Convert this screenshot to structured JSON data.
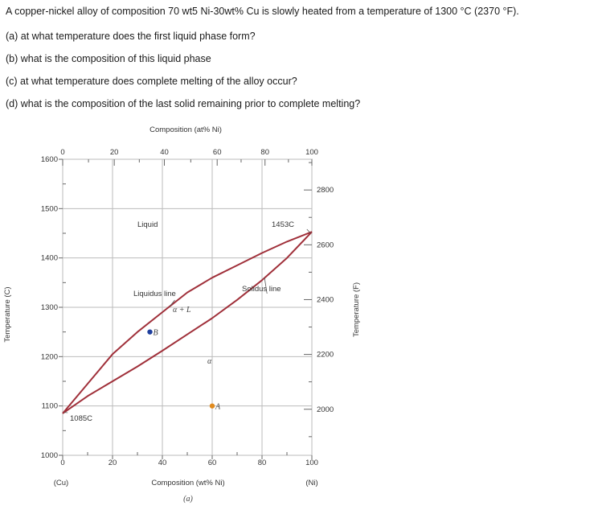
{
  "questions": [
    "A copper-nickel alloy of composition 70 wt5 Ni-30wt% Cu is slowly heated from a temperature of 1300 °C (2370 °F).",
    "(a) at what temperature does the first liquid phase form?",
    "(b) what is the composition of this liquid phase",
    "(c) at what temperature does complete melting of the alloy occur?",
    "(d) what is the composition of the last solid remaining prior to complete melting?"
  ],
  "chart_data": {
    "type": "line",
    "top_axis_label": "Composition (at% Ni)",
    "top_ticks": [
      "0",
      "20",
      "40",
      "60",
      "80",
      "100"
    ],
    "top_tick_positions_wt": [
      0,
      20.7,
      40.8,
      62.0,
      81.2,
      100
    ],
    "xlabel": "Composition (wt% Ni)",
    "xlim": [
      0,
      100
    ],
    "x_ticks": [
      0,
      20,
      40,
      60,
      80,
      100
    ],
    "x_end_labels": [
      "(Cu)",
      "(Ni)"
    ],
    "caption": "(a)",
    "ylabel": "Temperature (C)",
    "ylim": [
      1000,
      1600
    ],
    "y_ticks": [
      1000,
      1100,
      1200,
      1300,
      1400,
      1500,
      1600
    ],
    "ylabel_right": "Temperature (F)",
    "y_right_ticks": [
      2000,
      2200,
      2400,
      2600,
      2800
    ],
    "series": [
      {
        "name": "Liquidus line",
        "x": [
          0,
          10,
          20,
          30,
          40,
          50,
          60,
          70,
          80,
          90,
          100
        ],
        "y": [
          1085,
          1145,
          1205,
          1250,
          1290,
          1330,
          1360,
          1385,
          1410,
          1433,
          1453
        ]
      },
      {
        "name": "Solidus line",
        "x": [
          0,
          10,
          20,
          30,
          40,
          50,
          60,
          70,
          80,
          90,
          100
        ],
        "y": [
          1085,
          1120,
          1150,
          1180,
          1212,
          1245,
          1278,
          1315,
          1355,
          1400,
          1453
        ]
      }
    ],
    "points": [
      {
        "label": "B",
        "x": 35,
        "y": 1250,
        "color": "#1f3f9e"
      },
      {
        "label": "A",
        "x": 60,
        "y": 1100,
        "color": "#e08a1e"
      }
    ],
    "annotations": {
      "liquid": "Liquid",
      "liquidus": "Liquidus line",
      "solidus": "Solidus line",
      "two_phase": "α + L",
      "alpha": "α",
      "ni_melt": "1453C",
      "cu_melt": "1085C"
    },
    "colors": {
      "curve": "#a0303a",
      "grid": "#bbbbbb",
      "axis": "#666666"
    }
  }
}
